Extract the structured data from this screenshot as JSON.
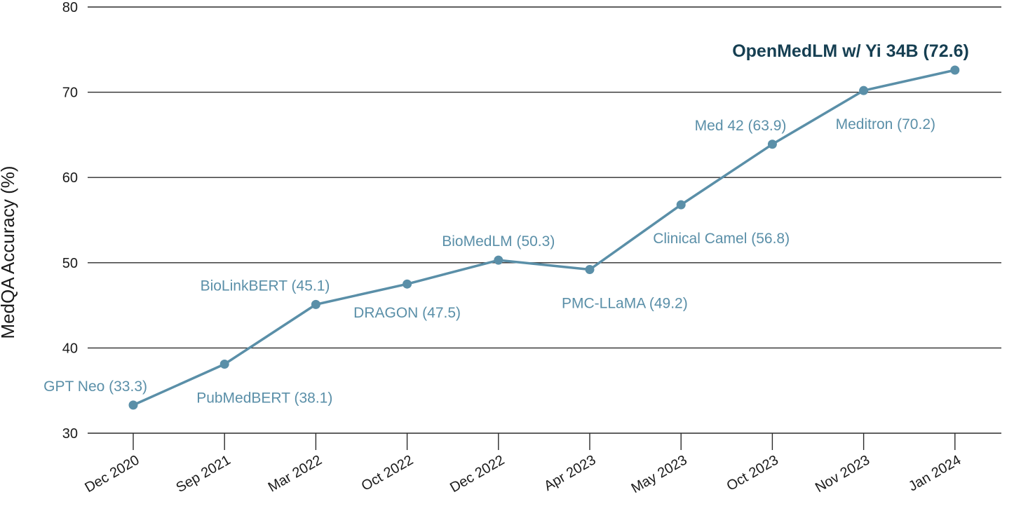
{
  "chart_data": {
    "type": "line",
    "ylabel": "MedQA Accuracy (%)",
    "xlabel": "",
    "ylim": [
      30,
      80
    ],
    "yticks": [
      30,
      40,
      50,
      60,
      70,
      80
    ],
    "grid": "horizontal",
    "categories": [
      "Dec 2020",
      "Sep 2021",
      "Mar 2022",
      "Oct 2022",
      "Dec 2022",
      "Apr 2023",
      "May 2023",
      "Oct 2023",
      "Nov 2023",
      "Jan 2024"
    ],
    "values": [
      33.3,
      38.1,
      45.1,
      47.5,
      50.3,
      49.2,
      56.8,
      63.9,
      70.2,
      72.6
    ],
    "point_labels": [
      {
        "text": "GPT Neo (33.3)",
        "placement": "above-left"
      },
      {
        "text": "PubMedBERT (38.1)",
        "placement": "below-right"
      },
      {
        "text": "BioLinkBERT (45.1)",
        "placement": "above-left"
      },
      {
        "text": "DRAGON (47.5)",
        "placement": "below"
      },
      {
        "text": "BioMedLM (50.3)",
        "placement": "above"
      },
      {
        "text": "PMC-LLaMA (49.2)",
        "placement": "below-right"
      },
      {
        "text": "Clinical Camel (56.8)",
        "placement": "below-right"
      },
      {
        "text": "Med 42 (63.9)",
        "placement": "above-left"
      },
      {
        "text": "Meditron (70.2)",
        "placement": "below-right"
      },
      {
        "text": "OpenMedLM w/ Yi 34B (72.6)",
        "placement": "above-left",
        "highlight": true
      }
    ],
    "colors": {
      "line": "#5a8fa8",
      "label": "#5a8fa8",
      "highlight_label": "#163f52",
      "grid": "#2b2b2b",
      "text": "#1a1a1a"
    }
  }
}
